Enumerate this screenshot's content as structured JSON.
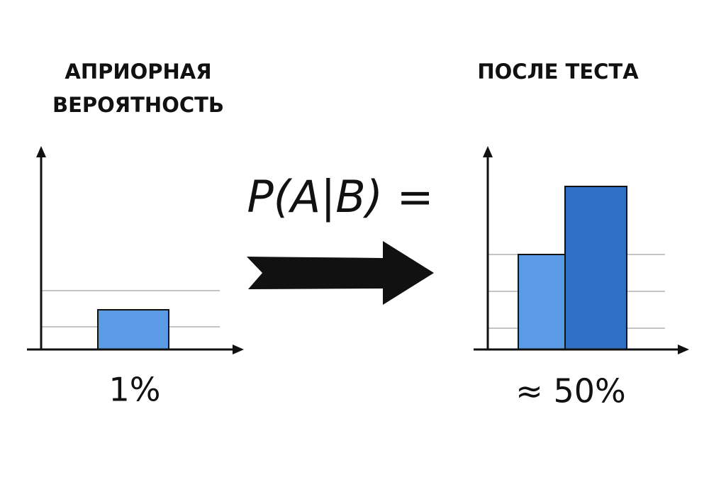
{
  "left": {
    "title": [
      "АПРИОРНАЯ",
      "ВЕРОЯТНОСТЬ"
    ],
    "label": "1%"
  },
  "formula": "P(A|B) =",
  "right": {
    "title": "ПОСЛЕ ТЕСТА",
    "label": "≈ 50%"
  }
}
